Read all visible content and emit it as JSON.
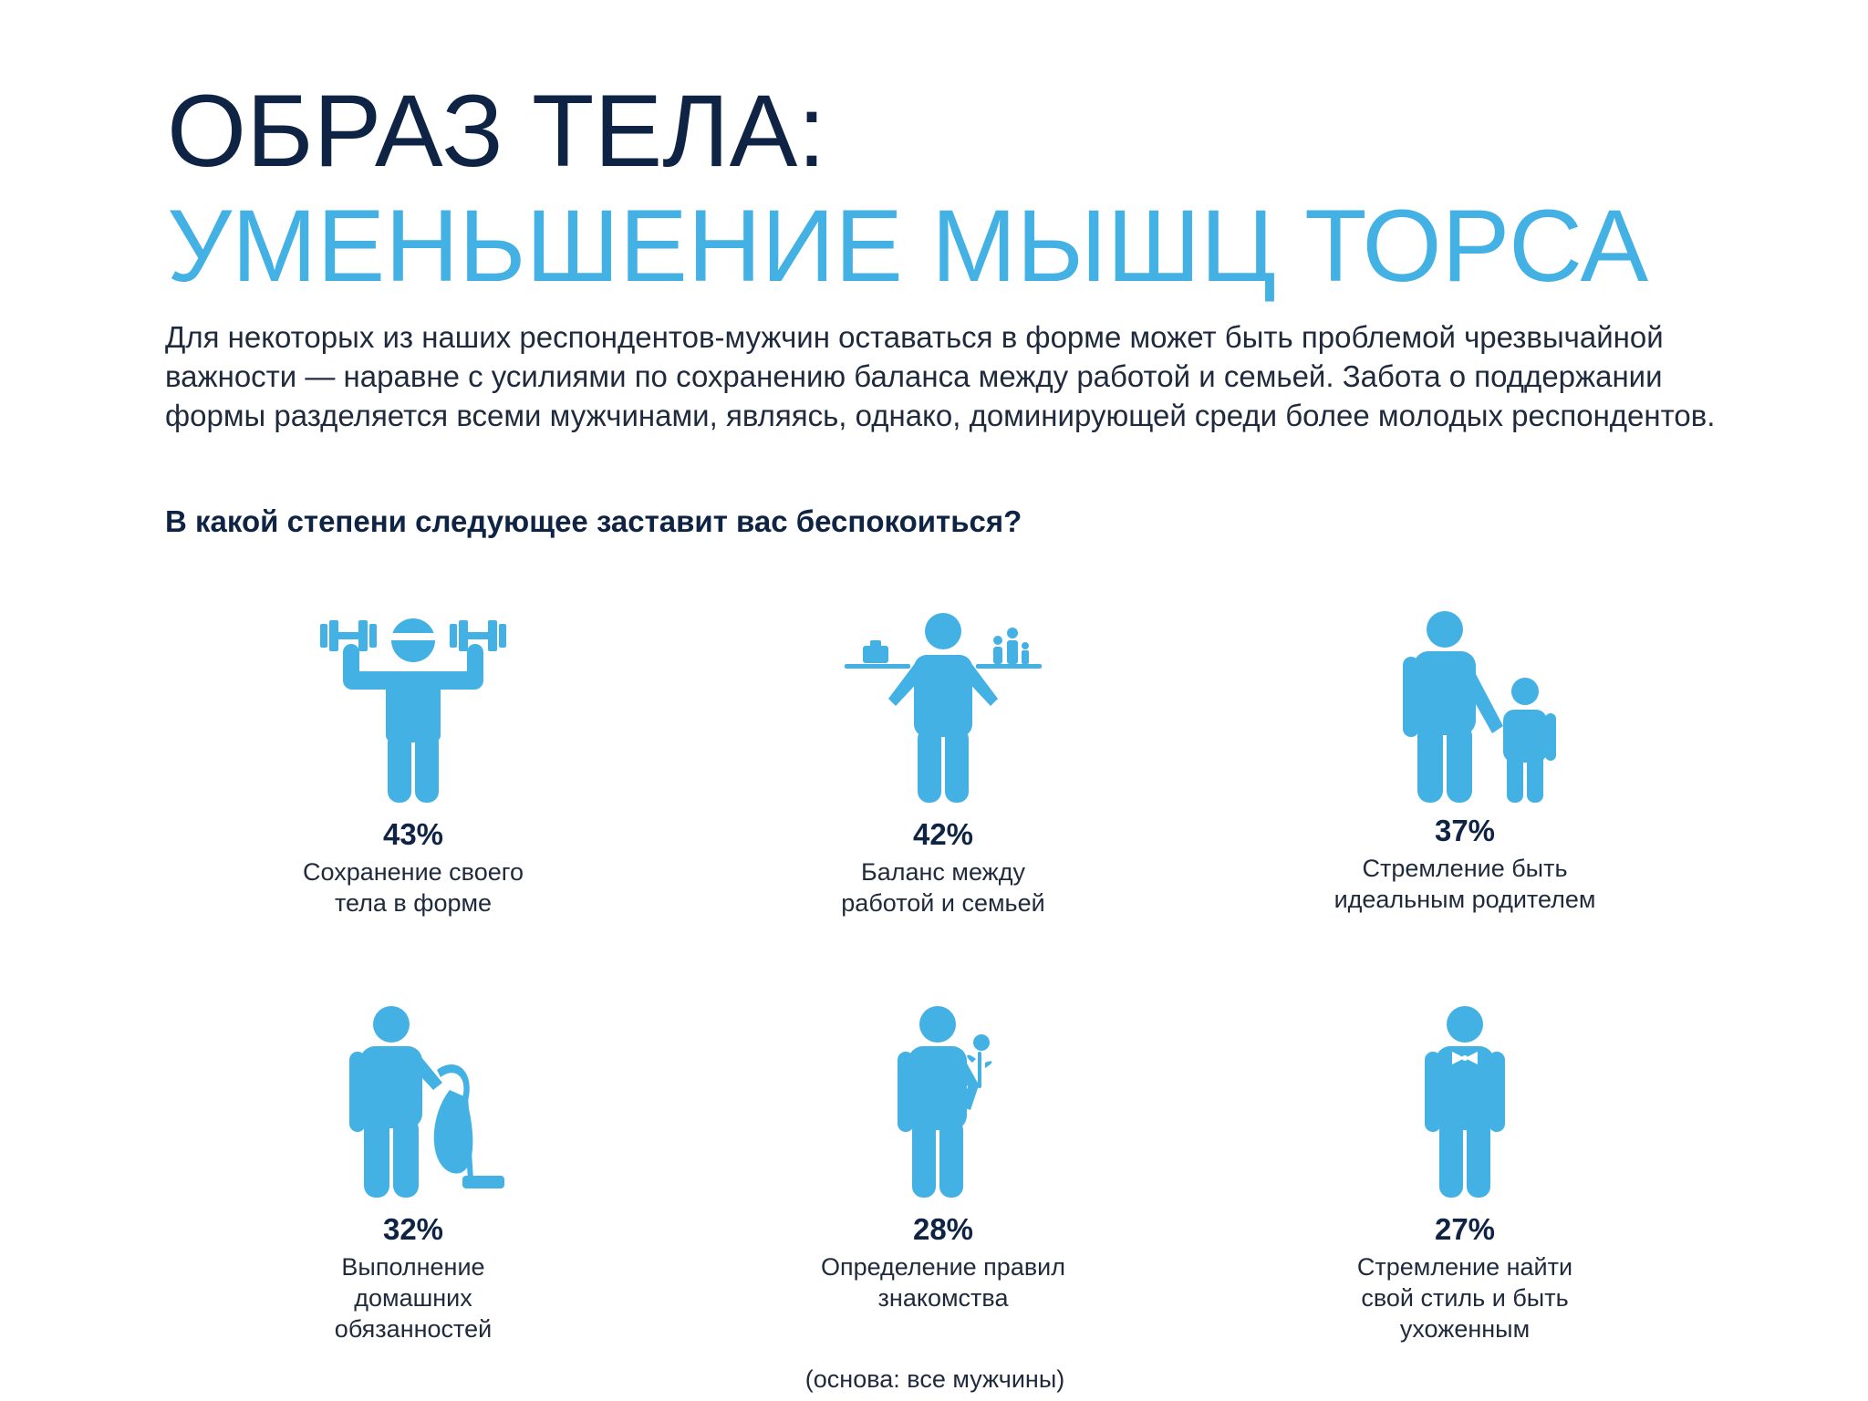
{
  "title": {
    "line1": "ОБРАЗ ТЕЛА:",
    "line2": "УМЕНЬШЕНИЕ МЫШЦ ТОРСА"
  },
  "intro": "Для некоторых из наших респондентов-мужчин оставаться в форме может быть проблемой чрезвычайной важности — наравне с усилиями по сохранению баланса между работой и семьей. Забота о поддержании формы разделяется всеми мужчинами, являясь, однако, доминирующей среди более молодых респондентов.",
  "question": "В какой степени следующее заставит вас беспокоиться?",
  "items": [
    {
      "percent": "43%",
      "label": "Сохранение своего тела в форме",
      "icon": "weightlifter-icon"
    },
    {
      "percent": "42%",
      "label": "Баланс между работой и семьей",
      "icon": "work-family-balance-icon"
    },
    {
      "percent": "37%",
      "label": "Стремление быть идеальным родителем",
      "icon": "parent-child-icon"
    },
    {
      "percent": "32%",
      "label": "Выполнение домашних обязанностей",
      "icon": "vacuum-cleaner-man-icon"
    },
    {
      "percent": "28%",
      "label": "Определение правил знакомства",
      "icon": "man-with-flower-icon"
    },
    {
      "percent": "27%",
      "label": "Стремление найти свой стиль и быть ухоженным",
      "icon": "man-with-bowtie-icon"
    }
  ],
  "footnote": "(основа: все мужчины)",
  "colors": {
    "navy": "#0f2444",
    "accent": "#44b1e4",
    "text": "#1f2a3c"
  }
}
